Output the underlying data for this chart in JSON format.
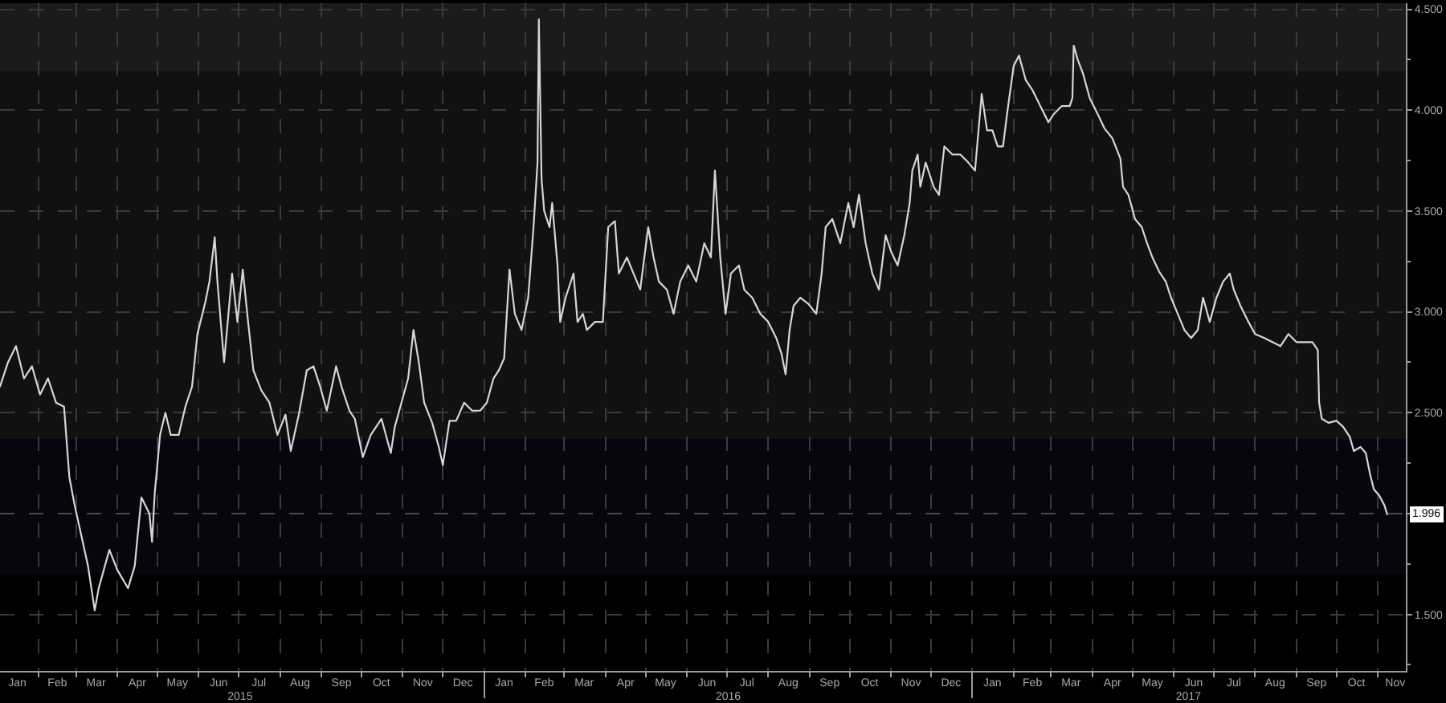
{
  "chart_data": {
    "type": "line",
    "line_style": "solid",
    "grid": true,
    "xlim": [
      "2015-01-03",
      "2017-11-22"
    ],
    "ylim": [
      1.22,
      4.53
    ],
    "x2lim": [
      "2015-01-03",
      "2017-11-22"
    ],
    "xticks": [
      {
        "value": "2015-01-16",
        "label": "Jan"
      },
      {
        "value": "2015-02-01",
        "label": null
      },
      {
        "value": "2015-02-15",
        "label": "Feb"
      },
      {
        "value": "2015-03-01",
        "label": null
      },
      {
        "value": "2015-03-16",
        "label": "Mar"
      },
      {
        "value": "2015-04-01",
        "label": null
      },
      {
        "value": "2015-04-16",
        "label": "Apr"
      },
      {
        "value": "2015-05-01",
        "label": null
      },
      {
        "value": "2015-05-16",
        "label": "May"
      },
      {
        "value": "2015-06-01",
        "label": null
      },
      {
        "value": "2015-06-16",
        "label": "Jun"
      },
      {
        "value": "2015-07-01",
        "label": null
      },
      {
        "value": "2015-07-16",
        "label": "Jul"
      },
      {
        "value": "2015-08-01",
        "label": null
      },
      {
        "value": "2015-08-16",
        "label": "Aug"
      },
      {
        "value": "2015-09-01",
        "label": null
      },
      {
        "value": "2015-09-16",
        "label": "Sep"
      },
      {
        "value": "2015-10-01",
        "label": null
      },
      {
        "value": "2015-10-16",
        "label": "Oct"
      },
      {
        "value": "2015-11-01",
        "label": null
      },
      {
        "value": "2015-11-16",
        "label": "Nov"
      },
      {
        "value": "2015-12-01",
        "label": null
      },
      {
        "value": "2015-12-16",
        "label": "Dec"
      },
      {
        "value": "2016-01-01",
        "label": null
      },
      {
        "value": "2016-01-16",
        "label": "Jan"
      },
      {
        "value": "2016-02-01",
        "label": null
      },
      {
        "value": "2016-02-15",
        "label": "Feb"
      },
      {
        "value": "2016-03-01",
        "label": null
      },
      {
        "value": "2016-03-16",
        "label": "Mar"
      },
      {
        "value": "2016-04-01",
        "label": null
      },
      {
        "value": "2016-04-16",
        "label": "Apr"
      },
      {
        "value": "2016-05-01",
        "label": null
      },
      {
        "value": "2016-05-16",
        "label": "May"
      },
      {
        "value": "2016-06-01",
        "label": null
      },
      {
        "value": "2016-06-16",
        "label": "Jun"
      },
      {
        "value": "2016-07-01",
        "label": null
      },
      {
        "value": "2016-07-16",
        "label": "Jul"
      },
      {
        "value": "2016-08-01",
        "label": null
      },
      {
        "value": "2016-08-16",
        "label": "Aug"
      },
      {
        "value": "2016-09-01",
        "label": null
      },
      {
        "value": "2016-09-16",
        "label": "Sep"
      },
      {
        "value": "2016-10-01",
        "label": null
      },
      {
        "value": "2016-10-16",
        "label": "Oct"
      },
      {
        "value": "2016-11-01",
        "label": null
      },
      {
        "value": "2016-11-16",
        "label": "Nov"
      },
      {
        "value": "2016-12-01",
        "label": null
      },
      {
        "value": "2016-12-16",
        "label": "Dec"
      },
      {
        "value": "2017-01-01",
        "label": null
      },
      {
        "value": "2017-01-16",
        "label": "Jan"
      },
      {
        "value": "2017-02-01",
        "label": null
      },
      {
        "value": "2017-02-15",
        "label": "Feb"
      },
      {
        "value": "2017-03-01",
        "label": null
      },
      {
        "value": "2017-03-16",
        "label": "Mar"
      },
      {
        "value": "2017-04-01",
        "label": null
      },
      {
        "value": "2017-04-16",
        "label": "Apr"
      },
      {
        "value": "2017-05-01",
        "label": null
      },
      {
        "value": "2017-05-16",
        "label": "May"
      },
      {
        "value": "2017-06-01",
        "label": null
      },
      {
        "value": "2017-06-16",
        "label": "Jun"
      },
      {
        "value": "2017-07-01",
        "label": null
      },
      {
        "value": "2017-07-16",
        "label": "Jul"
      },
      {
        "value": "2017-08-01",
        "label": null
      },
      {
        "value": "2017-08-16",
        "label": "Aug"
      },
      {
        "value": "2017-09-01",
        "label": null
      },
      {
        "value": "2017-09-16",
        "label": "Sep"
      },
      {
        "value": "2017-10-01",
        "label": null
      },
      {
        "value": "2017-10-16",
        "label": "Oct"
      },
      {
        "value": "2017-11-01",
        "label": null
      },
      {
        "value": "2017-11-14",
        "label": "Nov"
      }
    ],
    "x2ticks": [
      {
        "value": "2015-07-02",
        "label": "2015"
      },
      {
        "value": "2016-01-01",
        "label": null
      },
      {
        "value": "2016-07-02",
        "label": "2016"
      },
      {
        "value": "2017-01-01",
        "label": null
      },
      {
        "value": "2017-06-12",
        "label": "2017"
      }
    ],
    "yticks": [
      {
        "value": 1.25,
        "label": null
      },
      {
        "value": 1.5,
        "label": "1.500"
      },
      {
        "value": 1.75,
        "label": null
      },
      {
        "value": 2,
        "label": null
      },
      {
        "value": 2.25,
        "label": null
      },
      {
        "value": 2.5,
        "label": "2.500"
      },
      {
        "value": 2.75,
        "label": null
      },
      {
        "value": 3,
        "label": "3.000"
      },
      {
        "value": 3.25,
        "label": null
      },
      {
        "value": 3.5,
        "label": "3.500"
      },
      {
        "value": 3.75,
        "label": null
      },
      {
        "value": 4,
        "label": "4.000"
      },
      {
        "value": 4.25,
        "label": null
      },
      {
        "value": 4.5,
        "label": "4.500"
      }
    ],
    "bands": [
      {
        "axis": "y",
        "from": 4.19,
        "to": 4.53,
        "color": "#1b1b1b"
      },
      {
        "axis": "y",
        "from": 2.37,
        "to": 4.19,
        "color": "#111111"
      },
      {
        "axis": "y",
        "from": 1.7,
        "to": 2.37,
        "color": "#06060f"
      }
    ],
    "ref_lines": [
      {
        "axis": "y",
        "value": 2,
        "color": "#4a4a4a",
        "line_style": "dashed"
      }
    ],
    "annotations": [
      {
        "text": "1.996",
        "y": 1.996
      }
    ],
    "x": [
      "2015-01-03",
      "2015-01-09",
      "2015-01-15",
      "2015-01-21",
      "2015-01-27",
      "2015-02-02",
      "2015-02-08",
      "2015-02-14",
      "2015-02-20",
      "2015-02-24",
      "2015-02-28",
      "2015-03-04",
      "2015-03-10",
      "2015-03-15",
      "2015-03-18",
      "2015-03-26",
      "2015-04-01",
      "2015-04-09",
      "2015-04-14",
      "2015-04-19",
      "2015-04-25",
      "2015-04-27",
      "2015-04-29",
      "2015-05-03",
      "2015-05-07",
      "2015-05-11",
      "2015-05-17",
      "2015-05-22",
      "2015-05-27",
      "2015-05-31",
      "2015-06-06",
      "2015-06-09",
      "2015-06-13",
      "2015-06-15",
      "2015-06-20",
      "2015-06-26",
      "2015-06-30",
      "2015-07-04",
      "2015-07-08",
      "2015-07-12",
      "2015-07-18",
      "2015-07-24",
      "2015-07-30",
      "2015-08-05",
      "2015-08-09",
      "2015-08-15",
      "2015-08-21",
      "2015-08-26",
      "2015-08-31",
      "2015-09-05",
      "2015-09-12",
      "2015-09-16",
      "2015-09-22",
      "2015-09-26",
      "2015-10-02",
      "2015-10-08",
      "2015-10-16",
      "2015-10-23",
      "2015-10-26",
      "2015-10-31",
      "2015-11-05",
      "2015-11-09",
      "2015-11-13",
      "2015-11-17",
      "2015-11-23",
      "2015-11-28",
      "2015-12-01",
      "2015-12-06",
      "2015-12-11",
      "2015-12-17",
      "2015-12-23",
      "2015-12-29",
      "2016-01-03",
      "2016-01-08",
      "2016-01-12",
      "2016-01-16",
      "2016-01-20",
      "2016-01-24",
      "2016-01-29",
      "2016-02-03",
      "2016-02-07",
      "2016-02-10",
      "2016-02-11",
      "2016-02-13",
      "2016-02-15",
      "2016-02-19",
      "2016-02-21",
      "2016-02-25",
      "2016-02-27",
      "2016-03-02",
      "2016-03-08",
      "2016-03-11",
      "2016-03-15",
      "2016-03-18",
      "2016-03-24",
      "2016-03-30",
      "2016-04-03",
      "2016-04-08",
      "2016-04-11",
      "2016-04-17",
      "2016-04-22",
      "2016-04-27",
      "2016-05-03",
      "2016-05-07",
      "2016-05-11",
      "2016-05-17",
      "2016-05-22",
      "2016-05-27",
      "2016-06-02",
      "2016-06-08",
      "2016-06-14",
      "2016-06-19",
      "2016-06-22",
      "2016-06-26",
      "2016-06-30",
      "2016-07-04",
      "2016-07-10",
      "2016-07-14",
      "2016-07-20",
      "2016-07-26",
      "2016-08-01",
      "2016-08-07",
      "2016-08-11",
      "2016-08-14",
      "2016-08-17",
      "2016-08-20",
      "2016-08-25",
      "2016-08-31",
      "2016-09-06",
      "2016-09-10",
      "2016-09-13",
      "2016-09-18",
      "2016-09-24",
      "2016-09-30",
      "2016-10-04",
      "2016-10-08",
      "2016-10-13",
      "2016-10-18",
      "2016-10-23",
      "2016-10-28",
      "2016-11-01",
      "2016-11-06",
      "2016-11-11",
      "2016-11-15",
      "2016-11-17",
      "2016-11-21",
      "2016-11-23",
      "2016-11-27",
      "2016-12-03",
      "2016-12-07",
      "2016-12-11",
      "2016-12-17",
      "2016-12-23",
      "2016-12-29",
      "2017-01-03",
      "2017-01-08",
      "2017-01-12",
      "2017-01-16",
      "2017-01-20",
      "2017-01-24",
      "2017-01-27",
      "2017-02-01",
      "2017-02-05",
      "2017-02-10",
      "2017-02-15",
      "2017-02-21",
      "2017-02-27",
      "2017-03-03",
      "2017-03-09",
      "2017-03-15",
      "2017-03-17",
      "2017-03-18",
      "2017-03-21",
      "2017-03-25",
      "2017-03-30",
      "2017-04-05",
      "2017-04-10",
      "2017-04-16",
      "2017-04-22",
      "2017-04-24",
      "2017-04-28",
      "2017-05-03",
      "2017-05-08",
      "2017-05-12",
      "2017-05-16",
      "2017-05-21",
      "2017-05-26",
      "2017-05-30",
      "2017-06-04",
      "2017-06-09",
      "2017-06-14",
      "2017-06-19",
      "2017-06-23",
      "2017-06-28",
      "2017-07-03",
      "2017-07-08",
      "2017-07-13",
      "2017-07-16",
      "2017-07-21",
      "2017-07-27",
      "2017-08-01",
      "2017-08-08",
      "2017-08-14",
      "2017-08-20",
      "2017-08-26",
      "2017-09-01",
      "2017-09-07",
      "2017-09-13",
      "2017-09-17",
      "2017-09-18",
      "2017-09-20",
      "2017-09-25",
      "2017-10-01",
      "2017-10-06",
      "2017-10-11",
      "2017-10-14",
      "2017-10-19",
      "2017-10-23",
      "2017-10-26",
      "2017-10-29",
      "2017-11-02",
      "2017-11-06",
      "2017-11-08"
    ],
    "series": [
      {
        "color": "#d6d6d6",
        "values": [
          2.63,
          2.75,
          2.83,
          2.67,
          2.73,
          2.59,
          2.67,
          2.55,
          2.53,
          2.18,
          2.04,
          1.92,
          1.74,
          1.52,
          1.63,
          1.82,
          1.72,
          1.63,
          1.74,
          2.08,
          2.0,
          1.86,
          2.1,
          2.39,
          2.5,
          2.39,
          2.39,
          2.53,
          2.63,
          2.89,
          3.05,
          3.15,
          3.37,
          3.15,
          2.75,
          3.19,
          2.95,
          3.21,
          2.95,
          2.71,
          2.61,
          2.55,
          2.39,
          2.49,
          2.31,
          2.49,
          2.71,
          2.73,
          2.63,
          2.51,
          2.73,
          2.63,
          2.51,
          2.47,
          2.28,
          2.39,
          2.47,
          2.3,
          2.43,
          2.55,
          2.67,
          2.91,
          2.75,
          2.55,
          2.45,
          2.33,
          2.24,
          2.46,
          2.46,
          2.55,
          2.51,
          2.51,
          2.55,
          2.67,
          2.71,
          2.77,
          3.21,
          2.99,
          2.91,
          3.07,
          3.42,
          3.74,
          4.45,
          3.66,
          3.5,
          3.42,
          3.54,
          3.23,
          2.95,
          3.07,
          3.19,
          2.95,
          2.99,
          2.91,
          2.95,
          2.95,
          3.42,
          3.45,
          3.19,
          3.27,
          3.19,
          3.11,
          3.42,
          3.27,
          3.15,
          3.11,
          2.99,
          3.15,
          3.23,
          3.15,
          3.34,
          3.27,
          3.7,
          3.27,
          2.99,
          3.19,
          3.23,
          3.11,
          3.07,
          2.99,
          2.95,
          2.87,
          2.79,
          2.69,
          2.91,
          3.03,
          3.07,
          3.04,
          2.99,
          3.19,
          3.42,
          3.46,
          3.34,
          3.54,
          3.42,
          3.58,
          3.34,
          3.19,
          3.11,
          3.38,
          3.3,
          3.23,
          3.38,
          3.54,
          3.7,
          3.78,
          3.62,
          3.74,
          3.62,
          3.58,
          3.82,
          3.78,
          3.78,
          3.74,
          3.7,
          4.08,
          3.9,
          3.9,
          3.82,
          3.82,
          3.98,
          4.22,
          4.27,
          4.15,
          4.1,
          4.02,
          3.94,
          3.98,
          4.02,
          4.02,
          4.06,
          4.32,
          4.25,
          4.18,
          4.06,
          3.98,
          3.91,
          3.86,
          3.76,
          3.62,
          3.58,
          3.46,
          3.42,
          3.34,
          3.27,
          3.2,
          3.15,
          3.07,
          2.99,
          2.91,
          2.87,
          2.91,
          3.07,
          2.95,
          3.07,
          3.15,
          3.19,
          3.11,
          3.03,
          2.95,
          2.89,
          2.87,
          2.85,
          2.83,
          2.89,
          2.85,
          2.85,
          2.85,
          2.81,
          2.55,
          2.47,
          2.45,
          2.46,
          2.43,
          2.38,
          2.31,
          2.33,
          2.3,
          2.2,
          2.12,
          2.09,
          2.04,
          1.996
        ]
      }
    ]
  }
}
